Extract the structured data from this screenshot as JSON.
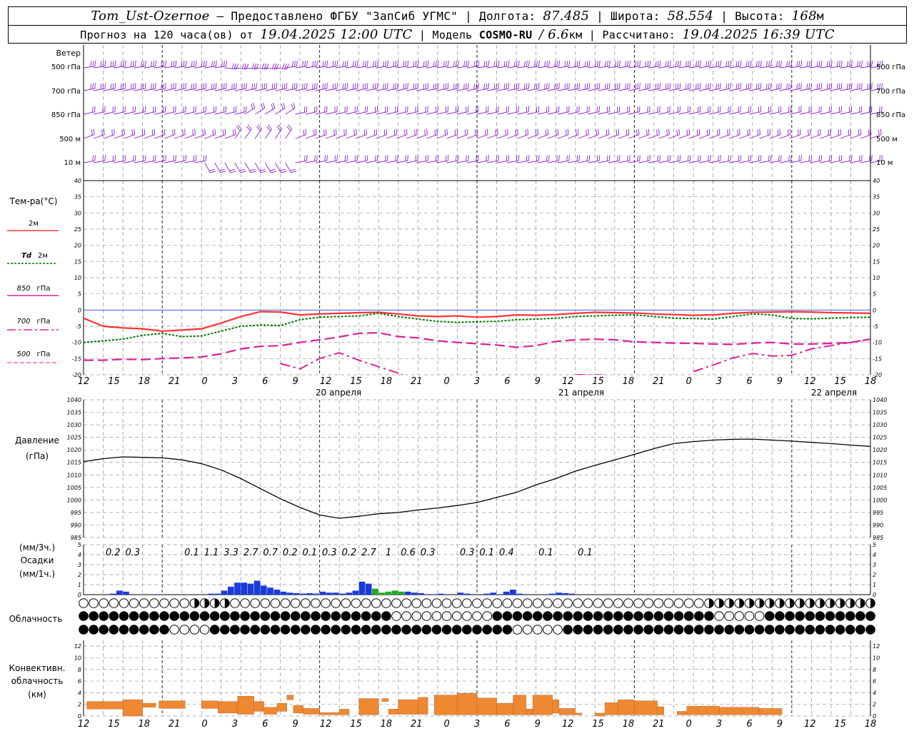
{
  "header": {
    "station": "Tom_Ust-Ozernoe",
    "provider": "– Предоставлено ФГБУ \"ЗапСиб УГМС\"",
    "lon_label": "Долгота:",
    "lon": "87.485",
    "lat_label": "Широта:",
    "lat": "58.554",
    "alt_label": "Высота:",
    "alt": "168",
    "alt_unit": "м",
    "forecast_prefix": "Прогноз на 120 часа(ов) от",
    "forecast_time": "19.04.2025 12:00 UTC",
    "model_label": "Модель",
    "model": "COSMO-RU",
    "model_res": "/ 6.6",
    "model_res_unit": "км",
    "calc_label": "Рассчитано:",
    "calc_time": "19.04.2025 16:39 UTC"
  },
  "labels": {
    "wind": "Ветер",
    "wind_levels": [
      "500 гПа",
      "700 гПа",
      "850 гПа",
      "500 м",
      "10 м"
    ],
    "temp_title": "Тем-ра(°С)",
    "legend_2m": "2м",
    "legend_td": "Td",
    "legend_td_2m": "2м",
    "legend_850": "850",
    "legend_850_u": "гПа",
    "legend_700": "700",
    "legend_700_u": "гПа",
    "legend_500": "500",
    "legend_500_u": "гПа",
    "pressure_1": "Давление",
    "pressure_2": "(гПа)",
    "precip_1": "(мм/3ч.)",
    "precip_2": "Осадки",
    "precip_3": "(мм/1ч.)",
    "cloud": "Облачность",
    "conv_1": "Конвективн.",
    "conv_2": "облачность",
    "conv_3": "(км)",
    "date_1": "20 апреля",
    "date_2": "21 апреля",
    "date_3": "22 апреля"
  },
  "colors": {
    "t2m": "#ff3333",
    "td2m": "#007700",
    "t850": "#dd2299",
    "t700": "#dd2299",
    "t500": "#dd2299",
    "wind": "#8822cc",
    "precip": "#1a3adb",
    "precip_green": "#22aa22",
    "conv": "#ee8833",
    "grid": "#999999"
  },
  "x_tick_labels": [
    "12",
    "15",
    "18",
    "21",
    "0",
    "3",
    "6",
    "9",
    "12",
    "15",
    "18",
    "21",
    "0",
    "3",
    "6",
    "9",
    "12",
    "15",
    "18",
    "21",
    "0",
    "3",
    "6",
    "9",
    "12",
    "15",
    "18"
  ],
  "chart_data": [
    {
      "type": "line",
      "title": "Тем-ра(°С)",
      "ylim": [
        -20,
        40
      ],
      "y_ticks": [
        -20,
        -15,
        -10,
        -5,
        0,
        5,
        10,
        15,
        20,
        25,
        30,
        35,
        40
      ],
      "x_hours": [
        0,
        3,
        6,
        9,
        12,
        15,
        18,
        21,
        24,
        27,
        30,
        33,
        36,
        39,
        42,
        45,
        48,
        51,
        54,
        57,
        60,
        63,
        66,
        69,
        72,
        75,
        78,
        81,
        84,
        87,
        90,
        93,
        96,
        99,
        102,
        105,
        108,
        111,
        114,
        117,
        120
      ],
      "series": [
        {
          "name": "2м",
          "values": [
            -2.5,
            -5.0,
            -5.5,
            -5.8,
            -6.5,
            -6.2,
            -5.8,
            -4.0,
            -2.0,
            -0.5,
            -0.6,
            -1.5,
            -1.2,
            -1.0,
            -0.8,
            -0.7,
            -1.2,
            -1.8,
            -2.0,
            -1.8,
            -2.2,
            -2.0,
            -1.5,
            -1.6,
            -1.4,
            -1.0,
            -0.7,
            -0.8,
            -0.9,
            -1.2,
            -1.4,
            -1.6,
            -1.5,
            -1.0,
            -0.7,
            -0.6,
            -0.5,
            -0.6,
            -0.8,
            -0.9,
            -1.0
          ]
        },
        {
          "name": "Td 2м",
          "values": [
            -10.0,
            -9.5,
            -9.0,
            -7.8,
            -7.2,
            -8.2,
            -8.0,
            -6.5,
            -5.0,
            -4.6,
            -4.8,
            -3.0,
            -2.2,
            -2.0,
            -1.8,
            -1.0,
            -2.0,
            -2.8,
            -3.5,
            -3.8,
            -3.6,
            -3.5,
            -3.0,
            -2.8,
            -2.5,
            -2.0,
            -1.8,
            -1.6,
            -1.5,
            -2.0,
            -2.5,
            -2.6,
            -2.8,
            -2.0,
            -1.2,
            -1.5,
            -2.6,
            -2.7,
            -2.5,
            -2.3,
            -2.2
          ]
        },
        {
          "name": "850 гПа",
          "values": [
            -15.5,
            -15.5,
            -15.2,
            -15.3,
            -15.0,
            -14.8,
            -14.5,
            -13.5,
            -12.0,
            -11.2,
            -11.0,
            -10.0,
            -9.2,
            -8.3,
            -7.2,
            -7.0,
            -8.2,
            -8.6,
            -9.5,
            -10.0,
            -10.4,
            -10.8,
            -11.5,
            -11.0,
            -9.7,
            -9.2,
            -9.0,
            -9.2,
            -9.8,
            -10.0,
            -10.2,
            -10.3,
            -10.5,
            -10.6,
            -10.2,
            -10.0,
            -10.5,
            -10.5,
            -10.3,
            -10.0,
            -9.0
          ]
        },
        {
          "name": "700 гПа",
          "values": [
            null,
            null,
            null,
            null,
            null,
            null,
            null,
            null,
            null,
            null,
            -16.5,
            -18.2,
            -15.0,
            -13.2,
            -15.5,
            -17.5,
            -19.5,
            -22.0,
            null,
            null,
            null,
            null,
            null,
            null,
            null,
            -20.0,
            -20.0,
            -20.3,
            null,
            null,
            null,
            -19.0,
            -17.0,
            -14.8,
            -13.4,
            -14.2,
            -14.0,
            -12.0,
            -11.0,
            -10.0,
            -9.0
          ]
        }
      ]
    },
    {
      "type": "line",
      "title": "Давление",
      "ylabel": "(гПа)",
      "ylim": [
        985,
        1040
      ],
      "y_ticks": [
        985,
        990,
        995,
        1000,
        1005,
        1010,
        1015,
        1020,
        1025,
        1030,
        1035,
        1040
      ],
      "x_hours": [
        0,
        3,
        6,
        9,
        12,
        15,
        18,
        21,
        24,
        27,
        30,
        33,
        36,
        39,
        42,
        45,
        48,
        51,
        54,
        57,
        60,
        63,
        66,
        69,
        72,
        75,
        78,
        81,
        84,
        87,
        90,
        93,
        96,
        99,
        102,
        105,
        108,
        111,
        114,
        117,
        120
      ],
      "series": [
        {
          "name": "Давление",
          "values": [
            1015.3,
            1016.5,
            1017.2,
            1017.0,
            1016.8,
            1016.0,
            1014.5,
            1012.0,
            1008.5,
            1004.5,
            1000.5,
            997.0,
            994.0,
            992.7,
            993.5,
            994.5,
            995.0,
            996.0,
            996.8,
            997.8,
            999.0,
            1001.0,
            1003.0,
            1006.0,
            1008.5,
            1011.5,
            1013.8,
            1016.0,
            1018.2,
            1020.5,
            1022.5,
            1023.3,
            1023.9,
            1024.2,
            1024.3,
            1023.9,
            1023.5,
            1023.0,
            1022.5,
            1021.9,
            1021.4
          ]
        }
      ]
    },
    {
      "type": "bar",
      "title": "Осадки",
      "ylabel": "(мм/1ч.)",
      "ylim": [
        0,
        5
      ],
      "y_ticks": [
        0,
        1,
        2,
        3,
        4,
        5
      ],
      "totals_3h": [
        "0.2",
        "0.3",
        "0.1",
        "1.1",
        "3.3",
        "2.7",
        "0.7",
        "0.2",
        "0.1",
        "0.3",
        "0.2",
        "2.7",
        "1",
        "0.6",
        "0.3",
        "0.3",
        "0.1",
        "0.4",
        "0.1",
        "0.1"
      ],
      "totals_3h_hours": [
        4.5,
        7.5,
        16.5,
        19.5,
        22.5,
        25.5,
        28.5,
        31.5,
        34.5,
        37.5,
        40.5,
        43.5,
        46.5,
        49.5,
        52.5,
        58.5,
        61.5,
        64.5,
        70.5,
        76.5
      ],
      "hourly_hours": [
        4,
        5,
        6,
        11,
        19,
        20,
        21,
        22,
        23,
        24,
        25,
        26,
        27,
        28,
        29,
        30,
        31,
        32,
        33,
        34,
        35,
        36,
        37,
        38,
        39,
        40,
        41,
        42,
        43,
        44,
        45,
        46,
        47,
        48,
        49,
        50,
        51,
        52,
        53,
        54,
        55,
        57,
        58,
        59,
        61,
        62,
        63,
        64,
        65,
        66,
        67,
        70,
        71,
        72,
        73,
        74
      ],
      "hourly_values": [
        0.1,
        0.4,
        0.3,
        0.05,
        0.1,
        0.1,
        0.4,
        0.8,
        1.2,
        1.2,
        1.1,
        1.4,
        0.9,
        0.7,
        0.5,
        0.3,
        0.2,
        0.15,
        0.1,
        0.15,
        0.1,
        0.3,
        0.2,
        0.2,
        0.1,
        0.2,
        0.4,
        1.3,
        1.1,
        0.6,
        0.2,
        0.3,
        0.4,
        0.3,
        0.3,
        0.2,
        0.15,
        0.05,
        0.05,
        0.1,
        0.05,
        0.2,
        0.1,
        0.05,
        0.1,
        0.2,
        0.05,
        0.3,
        0.5,
        0.1,
        0.05,
        0.05,
        0.1,
        0.2,
        0.15,
        0.1
      ],
      "green_hours": [
        44,
        45,
        46,
        47,
        48
      ]
    },
    {
      "type": "bar",
      "title": "Конвективн. облачность",
      "ylabel": "(км)",
      "ylim": [
        0,
        13
      ],
      "y_ticks": [
        0,
        2,
        4,
        6,
        8,
        10,
        12
      ],
      "segments": [
        {
          "from": 0.5,
          "to": 6.0,
          "bottom": 1.2,
          "top": 2.5
        },
        {
          "from": 6.0,
          "to": 9.0,
          "bottom": 0.0,
          "top": 2.8
        },
        {
          "from": 9.0,
          "to": 11.0,
          "bottom": 1.5,
          "top": 2.2
        },
        {
          "from": 11.5,
          "to": 15.5,
          "bottom": 1.3,
          "top": 2.6
        },
        {
          "from": 18.0,
          "to": 20.5,
          "bottom": 1.3,
          "top": 2.6
        },
        {
          "from": 20.5,
          "to": 23.5,
          "bottom": 0.5,
          "top": 2.5
        },
        {
          "from": 23.5,
          "to": 26.0,
          "bottom": 0.3,
          "top": 3.4
        },
        {
          "from": 26.0,
          "to": 27.5,
          "bottom": 0.8,
          "top": 2.5
        },
        {
          "from": 27.5,
          "to": 29.5,
          "bottom": 0.3,
          "top": 1.5
        },
        {
          "from": 29.5,
          "to": 31.0,
          "bottom": 0.8,
          "top": 2.2
        },
        {
          "from": 31.0,
          "to": 32.0,
          "bottom": 2.8,
          "top": 3.6
        },
        {
          "from": 32.0,
          "to": 33.5,
          "bottom": 0.5,
          "top": 1.8
        },
        {
          "from": 33.5,
          "to": 36.0,
          "bottom": 0.3,
          "top": 1.3
        },
        {
          "from": 36.0,
          "to": 39.0,
          "bottom": 0.2,
          "top": 0.6
        },
        {
          "from": 39.0,
          "to": 40.5,
          "bottom": 0.2,
          "top": 1.2
        },
        {
          "from": 42.0,
          "to": 45.0,
          "bottom": 0.2,
          "top": 3.0
        },
        {
          "from": 45.5,
          "to": 46.5,
          "bottom": 2.5,
          "top": 3.0
        },
        {
          "from": 46.5,
          "to": 48.0,
          "bottom": 0.3,
          "top": 1.2
        },
        {
          "from": 48.0,
          "to": 51.0,
          "bottom": 0.3,
          "top": 2.8
        },
        {
          "from": 51.0,
          "to": 52.5,
          "bottom": 0.3,
          "top": 3.2
        },
        {
          "from": 53.5,
          "to": 57.0,
          "bottom": 0.2,
          "top": 3.6
        },
        {
          "from": 57.0,
          "to": 60.0,
          "bottom": 0.2,
          "top": 3.9
        },
        {
          "from": 60.0,
          "to": 63.0,
          "bottom": 0.2,
          "top": 3.1
        },
        {
          "from": 63.0,
          "to": 65.5,
          "bottom": 0.2,
          "top": 2.2
        },
        {
          "from": 65.5,
          "to": 67.5,
          "bottom": 0.2,
          "top": 3.6
        },
        {
          "from": 67.5,
          "to": 68.5,
          "bottom": 0.2,
          "top": 1.2
        },
        {
          "from": 68.5,
          "to": 71.5,
          "bottom": 0.2,
          "top": 3.6
        },
        {
          "from": 71.5,
          "to": 72.5,
          "bottom": 0.5,
          "top": 2.8
        },
        {
          "from": 72.5,
          "to": 75.0,
          "bottom": 0.2,
          "top": 1.3
        },
        {
          "from": 75.0,
          "to": 76.0,
          "bottom": 0.2,
          "top": 0.5
        },
        {
          "from": 78.0,
          "to": 79.5,
          "bottom": 0.0,
          "top": 0.5
        },
        {
          "from": 79.5,
          "to": 81.5,
          "bottom": 0.2,
          "top": 2.3
        },
        {
          "from": 81.5,
          "to": 84.0,
          "bottom": 0.2,
          "top": 2.8
        },
        {
          "from": 84.0,
          "to": 87.5,
          "bottom": 0.2,
          "top": 2.6
        },
        {
          "from": 87.5,
          "to": 88.5,
          "bottom": 0.2,
          "top": 1.6
        },
        {
          "from": 90.5,
          "to": 92.0,
          "bottom": 0.2,
          "top": 0.8
        },
        {
          "from": 92.0,
          "to": 97.0,
          "bottom": 0.2,
          "top": 1.7
        },
        {
          "from": 97.0,
          "to": 103.0,
          "bottom": 0.2,
          "top": 1.5
        },
        {
          "from": 103.0,
          "to": 106.5,
          "bottom": 0.2,
          "top": 1.3
        }
      ]
    }
  ]
}
